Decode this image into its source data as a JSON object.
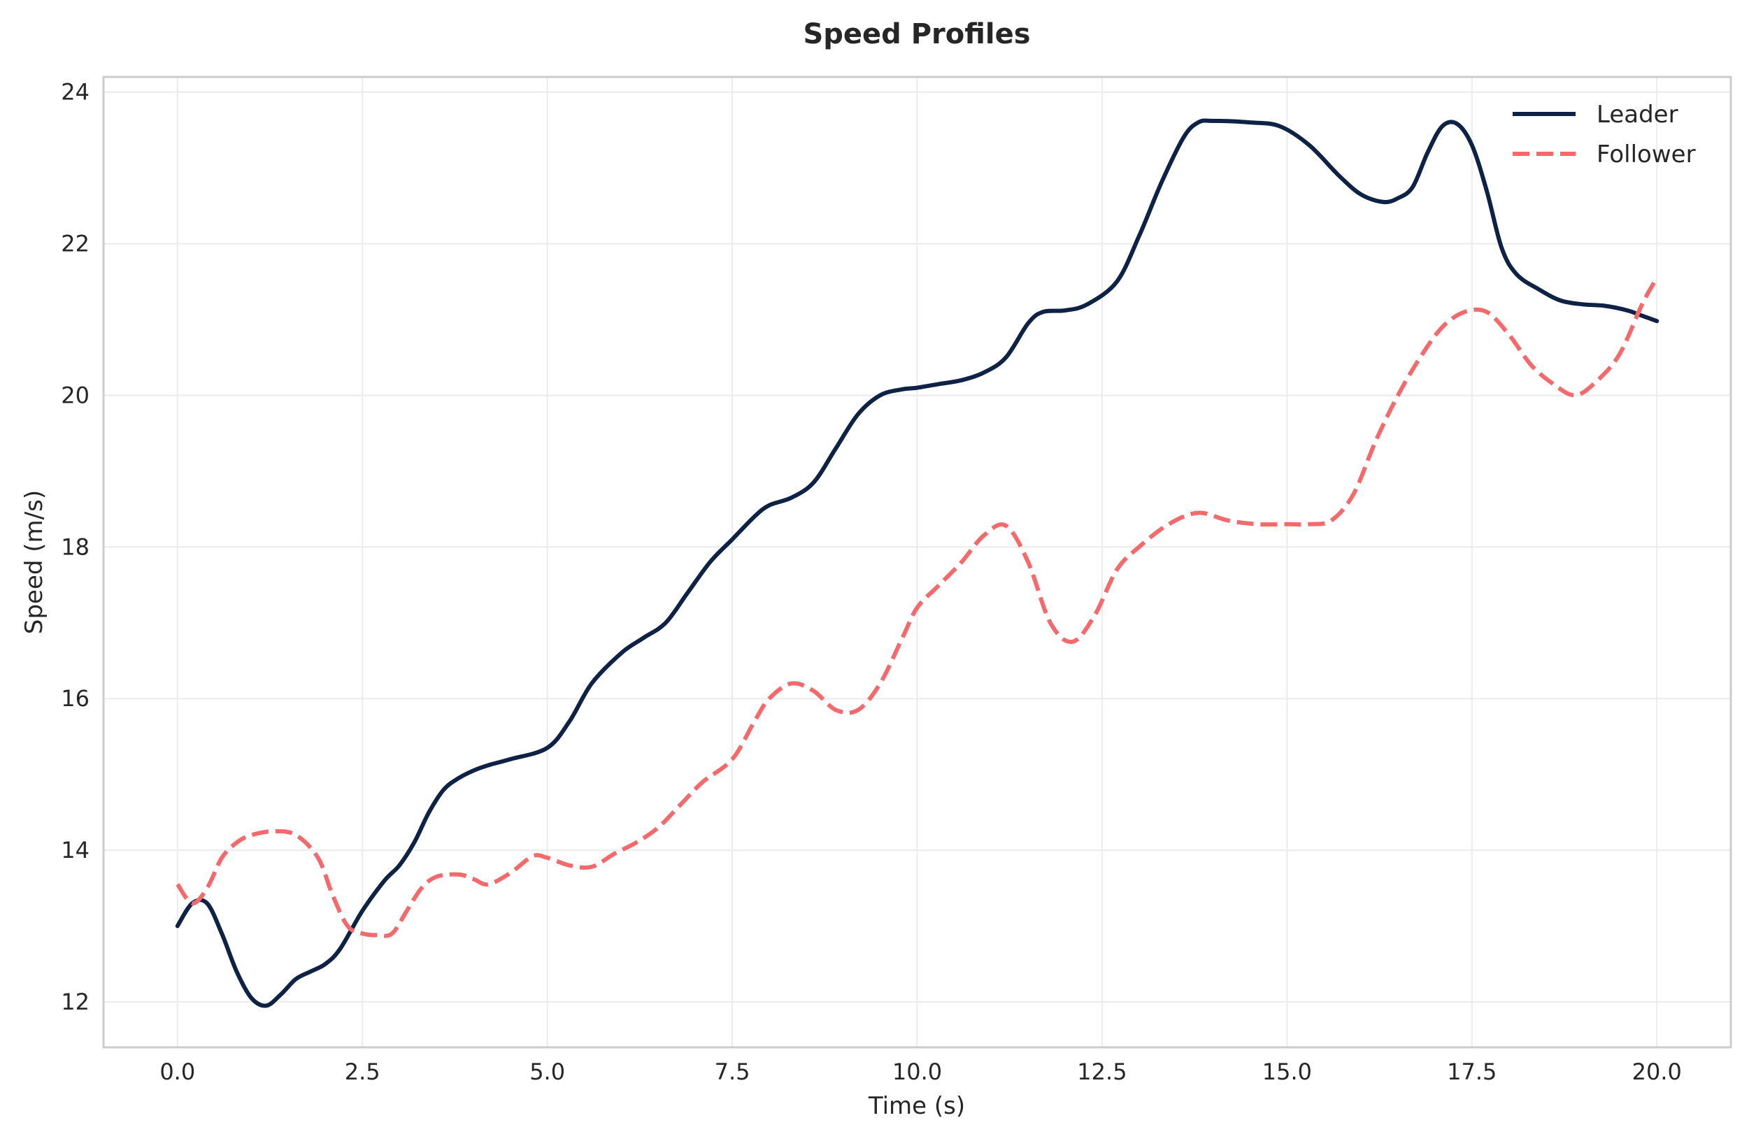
{
  "chart_data": {
    "type": "line",
    "title": "Speed Profiles",
    "xlabel": "Time (s)",
    "ylabel": "Speed (m/s)",
    "xlim": [
      -1.0,
      21.0
    ],
    "ylim": [
      11.4,
      24.2
    ],
    "xticks": [
      0.0,
      2.5,
      5.0,
      7.5,
      10.0,
      12.5,
      15.0,
      17.5,
      20.0
    ],
    "xtick_labels": [
      "0.0",
      "2.5",
      "5.0",
      "7.5",
      "10.0",
      "12.5",
      "15.0",
      "17.5",
      "20.0"
    ],
    "yticks": [
      12,
      14,
      16,
      18,
      20,
      22,
      24
    ],
    "ytick_labels": [
      "12",
      "14",
      "16",
      "18",
      "20",
      "22",
      "24"
    ],
    "grid": true,
    "legend_position": "top-right",
    "series": [
      {
        "name": "Leader",
        "color": "#0d2244",
        "style": "solid",
        "x": [
          0.0,
          0.2,
          0.4,
          0.6,
          0.8,
          1.0,
          1.2,
          1.4,
          1.6,
          1.8,
          2.0,
          2.2,
          2.5,
          2.8,
          3.0,
          3.2,
          3.4,
          3.6,
          3.8,
          4.0,
          4.2,
          4.5,
          5.0,
          5.3,
          5.6,
          6.0,
          6.3,
          6.6,
          6.9,
          7.2,
          7.5,
          7.8,
          8.0,
          8.3,
          8.6,
          8.9,
          9.2,
          9.5,
          9.8,
          10.0,
          10.3,
          10.6,
          10.9,
          11.2,
          11.5,
          11.7,
          12.0,
          12.3,
          12.7,
          13.0,
          13.3,
          13.6,
          13.8,
          14.0,
          14.5,
          14.9,
          15.3,
          15.7,
          16.0,
          16.3,
          16.5,
          16.7,
          16.9,
          17.1,
          17.3,
          17.5,
          17.7,
          17.9,
          18.1,
          18.4,
          18.7,
          19.0,
          19.3,
          19.6,
          19.8,
          20.0
        ],
        "y": [
          13.0,
          13.3,
          13.3,
          12.9,
          12.4,
          12.05,
          11.95,
          12.1,
          12.3,
          12.4,
          12.5,
          12.7,
          13.2,
          13.6,
          13.8,
          14.1,
          14.5,
          14.8,
          14.95,
          15.05,
          15.12,
          15.2,
          15.35,
          15.7,
          16.2,
          16.6,
          16.8,
          17.0,
          17.4,
          17.8,
          18.1,
          18.4,
          18.55,
          18.65,
          18.85,
          19.3,
          19.75,
          20.0,
          20.08,
          20.1,
          20.15,
          20.2,
          20.3,
          20.5,
          20.95,
          21.1,
          21.12,
          21.2,
          21.5,
          22.1,
          22.8,
          23.4,
          23.6,
          23.62,
          23.6,
          23.55,
          23.3,
          22.9,
          22.65,
          22.55,
          22.6,
          22.75,
          23.2,
          23.55,
          23.58,
          23.3,
          22.7,
          21.95,
          21.6,
          21.4,
          21.25,
          21.2,
          21.18,
          21.12,
          21.05,
          20.98
        ]
      },
      {
        "name": "Follower",
        "color": "#f4696b",
        "style": "dashed",
        "x": [
          0.0,
          0.2,
          0.4,
          0.6,
          0.8,
          1.0,
          1.3,
          1.6,
          1.9,
          2.1,
          2.3,
          2.5,
          2.7,
          2.9,
          3.1,
          3.3,
          3.5,
          3.8,
          4.0,
          4.2,
          4.5,
          4.8,
          5.0,
          5.3,
          5.6,
          5.9,
          6.2,
          6.5,
          6.8,
          7.1,
          7.5,
          7.8,
          8.0,
          8.3,
          8.6,
          8.9,
          9.2,
          9.5,
          9.8,
          10.0,
          10.3,
          10.6,
          10.9,
          11.2,
          11.5,
          11.8,
          12.1,
          12.4,
          12.7,
          13.0,
          13.4,
          13.8,
          14.2,
          14.6,
          15.0,
          15.3,
          15.6,
          15.9,
          16.2,
          16.5,
          16.8,
          17.1,
          17.4,
          17.7,
          18.0,
          18.3,
          18.6,
          18.9,
          19.2,
          19.5,
          19.8,
          20.0
        ],
        "y": [
          13.55,
          13.3,
          13.5,
          13.9,
          14.1,
          14.2,
          14.25,
          14.2,
          13.9,
          13.4,
          13.0,
          12.9,
          12.88,
          12.9,
          13.2,
          13.5,
          13.65,
          13.68,
          13.62,
          13.55,
          13.7,
          13.92,
          13.9,
          13.8,
          13.78,
          13.95,
          14.1,
          14.3,
          14.6,
          14.9,
          15.2,
          15.7,
          16.0,
          16.2,
          16.1,
          15.85,
          15.85,
          16.2,
          16.8,
          17.2,
          17.5,
          17.8,
          18.15,
          18.28,
          17.8,
          17.0,
          16.75,
          17.1,
          17.7,
          18.0,
          18.3,
          18.45,
          18.35,
          18.3,
          18.3,
          18.3,
          18.35,
          18.7,
          19.4,
          20.0,
          20.5,
          20.9,
          21.1,
          21.1,
          20.8,
          20.4,
          20.15,
          20.0,
          20.2,
          20.55,
          21.2,
          21.55
        ]
      }
    ]
  }
}
